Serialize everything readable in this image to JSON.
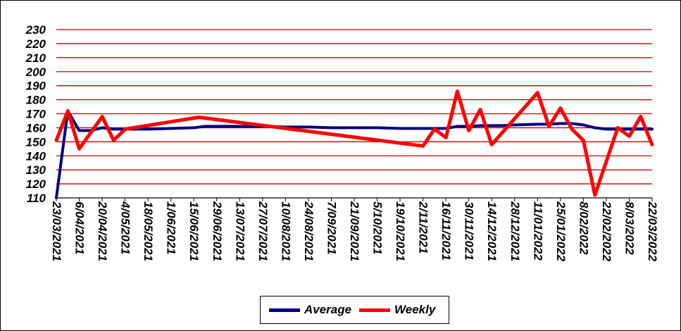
{
  "chart_data": {
    "type": "line",
    "title": "",
    "xlabel": "",
    "ylabel": "",
    "ylim": [
      110,
      230
    ],
    "yticks": [
      110,
      120,
      130,
      140,
      150,
      160,
      170,
      180,
      190,
      200,
      210,
      220,
      230
    ],
    "grid": "horizontal",
    "grid_color": "#cc0000",
    "legend_position": "bottom",
    "xticks": [
      "23/03/2021",
      "6/04/2021",
      "20/04/2021",
      "4/05/2021",
      "18/05/2021",
      "1/06/2021",
      "15/06/2021",
      "29/06/2021",
      "13/07/2021",
      "27/07/2021",
      "10/08/2021",
      "24/08/2021",
      "7/09/2021",
      "21/09/2021",
      "5/10/2021",
      "19/10/2021",
      "2/11/2021",
      "16/11/2021",
      "30/11/2021",
      "14/12/2021",
      "28/12/2021",
      "11/01/2022",
      "25/01/2022",
      "8/02/2022",
      "22/02/2022",
      "8/03/2022",
      "22/03/2022"
    ],
    "series": [
      {
        "name": "Average",
        "color": "#000080",
        "points": [
          [
            "23/03/2021",
            110
          ],
          [
            "30/03/2021",
            172
          ],
          [
            "6/04/2021",
            158
          ],
          [
            "13/04/2021",
            158
          ],
          [
            "20/04/2021",
            160
          ],
          [
            "27/04/2021",
            159
          ],
          [
            "4/05/2021",
            159
          ],
          [
            "11/05/2021",
            159
          ],
          [
            "18/05/2021",
            159
          ],
          [
            "1/06/2021",
            159.5
          ],
          [
            "15/06/2021",
            160
          ],
          [
            "22/06/2021",
            161
          ],
          [
            "29/06/2021",
            161
          ],
          [
            "13/07/2021",
            161
          ],
          [
            "27/07/2021",
            161
          ],
          [
            "10/08/2021",
            160.5
          ],
          [
            "24/08/2021",
            160.5
          ],
          [
            "7/09/2021",
            160
          ],
          [
            "21/09/2021",
            160
          ],
          [
            "5/10/2021",
            160
          ],
          [
            "19/10/2021",
            159.5
          ],
          [
            "2/11/2021",
            159.5
          ],
          [
            "9/11/2021",
            159.5
          ],
          [
            "16/11/2021",
            159.5
          ],
          [
            "23/11/2021",
            161
          ],
          [
            "30/11/2021",
            161
          ],
          [
            "7/12/2021",
            161.5
          ],
          [
            "14/12/2021",
            161.5
          ],
          [
            "21/12/2021",
            161.5
          ],
          [
            "28/12/2021",
            162
          ],
          [
            "11/01/2022",
            162.5
          ],
          [
            "18/01/2022",
            162.5
          ],
          [
            "25/01/2022",
            163
          ],
          [
            "1/02/2022",
            163
          ],
          [
            "8/02/2022",
            162
          ],
          [
            "15/02/2022",
            160
          ],
          [
            "22/02/2022",
            159
          ],
          [
            "1/03/2022",
            159
          ],
          [
            "8/03/2022",
            159
          ],
          [
            "15/03/2022",
            159
          ],
          [
            "22/03/2022",
            159
          ]
        ]
      },
      {
        "name": "Weekly",
        "color": "#ff0000",
        "points": [
          [
            "23/03/2021",
            151
          ],
          [
            "30/03/2021",
            172
          ],
          [
            "6/04/2021",
            145
          ],
          [
            "20/04/2021",
            168
          ],
          [
            "27/04/2021",
            151
          ],
          [
            "4/05/2021",
            159
          ],
          [
            "18/06/2021",
            167.5
          ],
          [
            "2/11/2021",
            147
          ],
          [
            "9/11/2021",
            159
          ],
          [
            "16/11/2021",
            153
          ],
          [
            "23/11/2021",
            186
          ],
          [
            "30/11/2021",
            158
          ],
          [
            "7/12/2021",
            173
          ],
          [
            "14/12/2021",
            148
          ],
          [
            "11/01/2022",
            185
          ],
          [
            "18/01/2022",
            161
          ],
          [
            "25/01/2022",
            174
          ],
          [
            "1/02/2022",
            159
          ],
          [
            "8/02/2022",
            151
          ],
          [
            "15/02/2022",
            112
          ],
          [
            "1/03/2022",
            160
          ],
          [
            "8/03/2022",
            154
          ],
          [
            "15/03/2022",
            168
          ],
          [
            "22/03/2022",
            148
          ]
        ]
      }
    ]
  }
}
